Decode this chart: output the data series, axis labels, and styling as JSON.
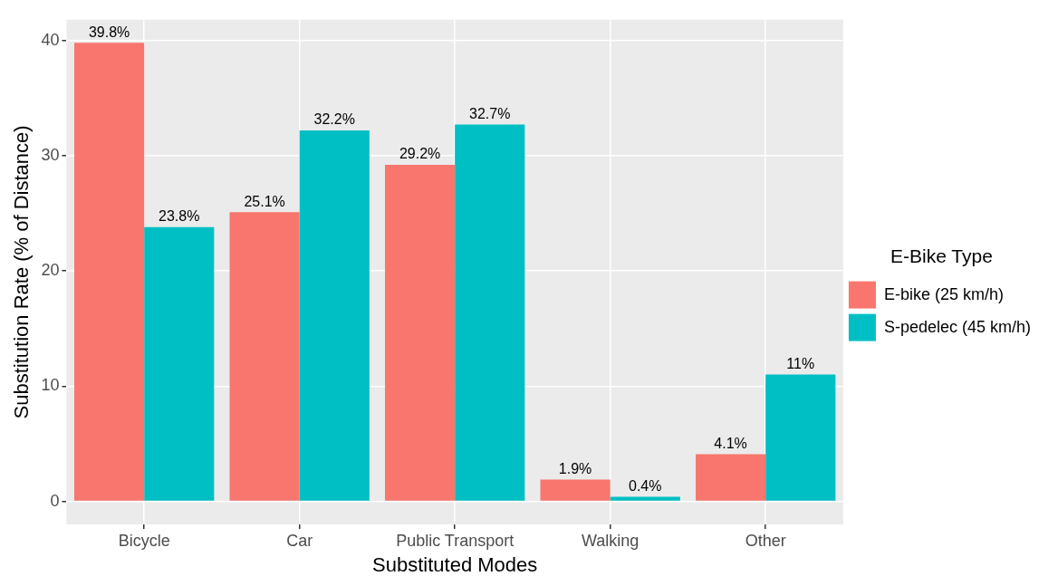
{
  "chart_data": {
    "type": "bar",
    "xlabel": "Substituted Modes",
    "ylabel": "Substitution Rate (% of Distance)",
    "legend_title": "E-Bike Type",
    "categories": [
      "Bicycle",
      "Car",
      "Public Transport",
      "Walking",
      "Other"
    ],
    "series": [
      {
        "name": "E-bike (25 km/h)",
        "color": "#f8766d",
        "values": [
          39.8,
          25.1,
          29.2,
          1.9,
          4.1
        ],
        "value_labels": [
          "39.8%",
          "25.1%",
          "29.2%",
          "1.9%",
          "4.1%"
        ]
      },
      {
        "name": "S-pedelec (45 km/h)",
        "color": "#00bfc4",
        "values": [
          23.8,
          32.2,
          32.7,
          0.4,
          11
        ],
        "value_labels": [
          "23.8%",
          "32.2%",
          "32.7%",
          "0.4%",
          "11%"
        ]
      }
    ],
    "ylim": [
      -2,
      41.8
    ],
    "yticks": [
      0,
      10,
      20,
      30,
      40
    ],
    "grid": true,
    "legend": "right"
  }
}
